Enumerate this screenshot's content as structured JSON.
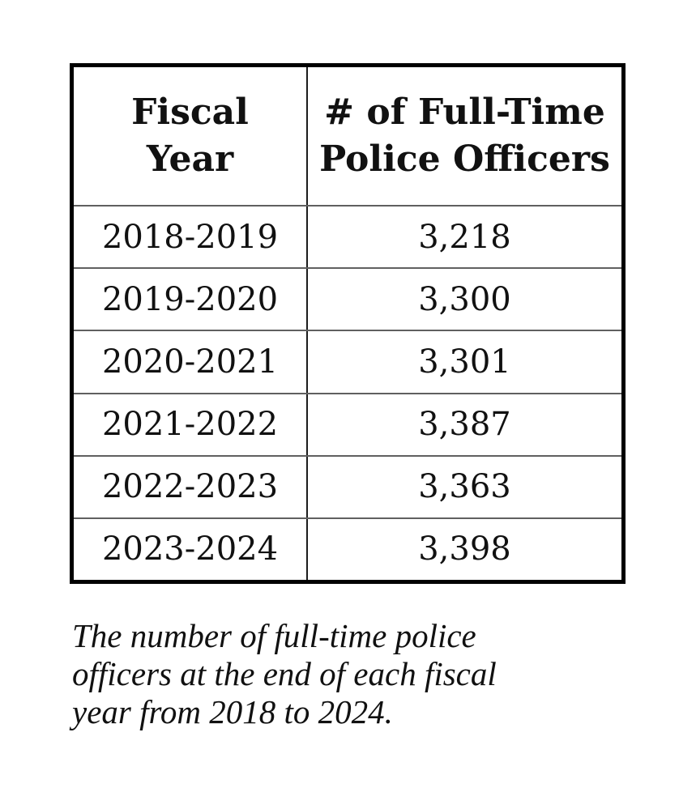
{
  "colors": {
    "background": "#ffffff",
    "text": "#111111",
    "outer_border": "#000000",
    "row_line": "#606060",
    "column_line": "#1c1c1c"
  },
  "table": {
    "header": {
      "col1_line1": "Fiscal",
      "col1_line2": "Year",
      "col2_line1": "# of Full-Time",
      "col2_line2": "Police Officers"
    },
    "rows": [
      {
        "fiscal_year": "2018-2019",
        "officers": "3,218"
      },
      {
        "fiscal_year": "2019-2020",
        "officers": "3,300"
      },
      {
        "fiscal_year": "2020-2021",
        "officers": "3,301"
      },
      {
        "fiscal_year": "2021-2022",
        "officers": "3,387"
      },
      {
        "fiscal_year": "2022-2023",
        "officers": "3,363"
      },
      {
        "fiscal_year": "2023-2024",
        "officers": "3,398"
      }
    ]
  },
  "caption": {
    "line1": "The number of full-time police",
    "line2": "officers at the end of each fiscal",
    "line3": "year from 2018 to 2024."
  },
  "chart_data": {
    "type": "table",
    "columns": [
      "Fiscal Year",
      "# of Full-Time Police Officers"
    ],
    "rows": [
      [
        "2018-2019",
        3218
      ],
      [
        "2019-2020",
        3300
      ],
      [
        "2020-2021",
        3301
      ],
      [
        "2021-2022",
        3387
      ],
      [
        "2022-2023",
        3363
      ],
      [
        "2023-2024",
        3398
      ]
    ],
    "caption": "The number of full-time police officers at the end of each fiscal year from 2018 to 2024."
  }
}
